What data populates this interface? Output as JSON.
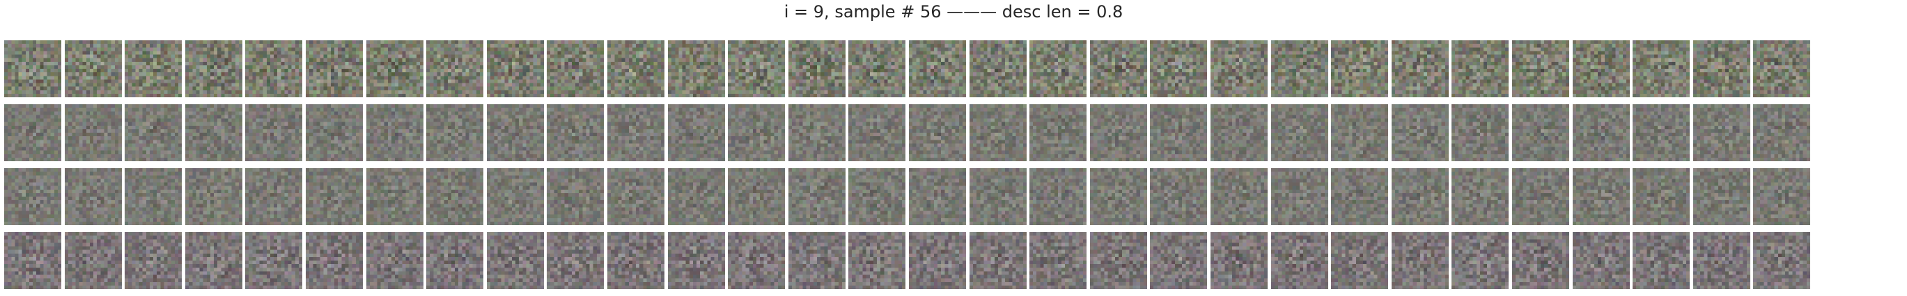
{
  "figure": {
    "title": "i = 9, sample # 56 ——— desc len = 0.8"
  },
  "grid": {
    "rows": 4,
    "cols": 30,
    "row_appearance": [
      {
        "row": 1,
        "noise_level": "high",
        "tint": "gray-green"
      },
      {
        "row": 2,
        "noise_level": "medium",
        "tint": "gray"
      },
      {
        "row": 3,
        "noise_level": "medium",
        "tint": "gray"
      },
      {
        "row": 4,
        "noise_level": "medium",
        "tint": "gray-purple"
      }
    ],
    "colors": {
      "background": "#ffffff",
      "tile_base": "#7c7c72",
      "title_text": "#262626"
    }
  }
}
